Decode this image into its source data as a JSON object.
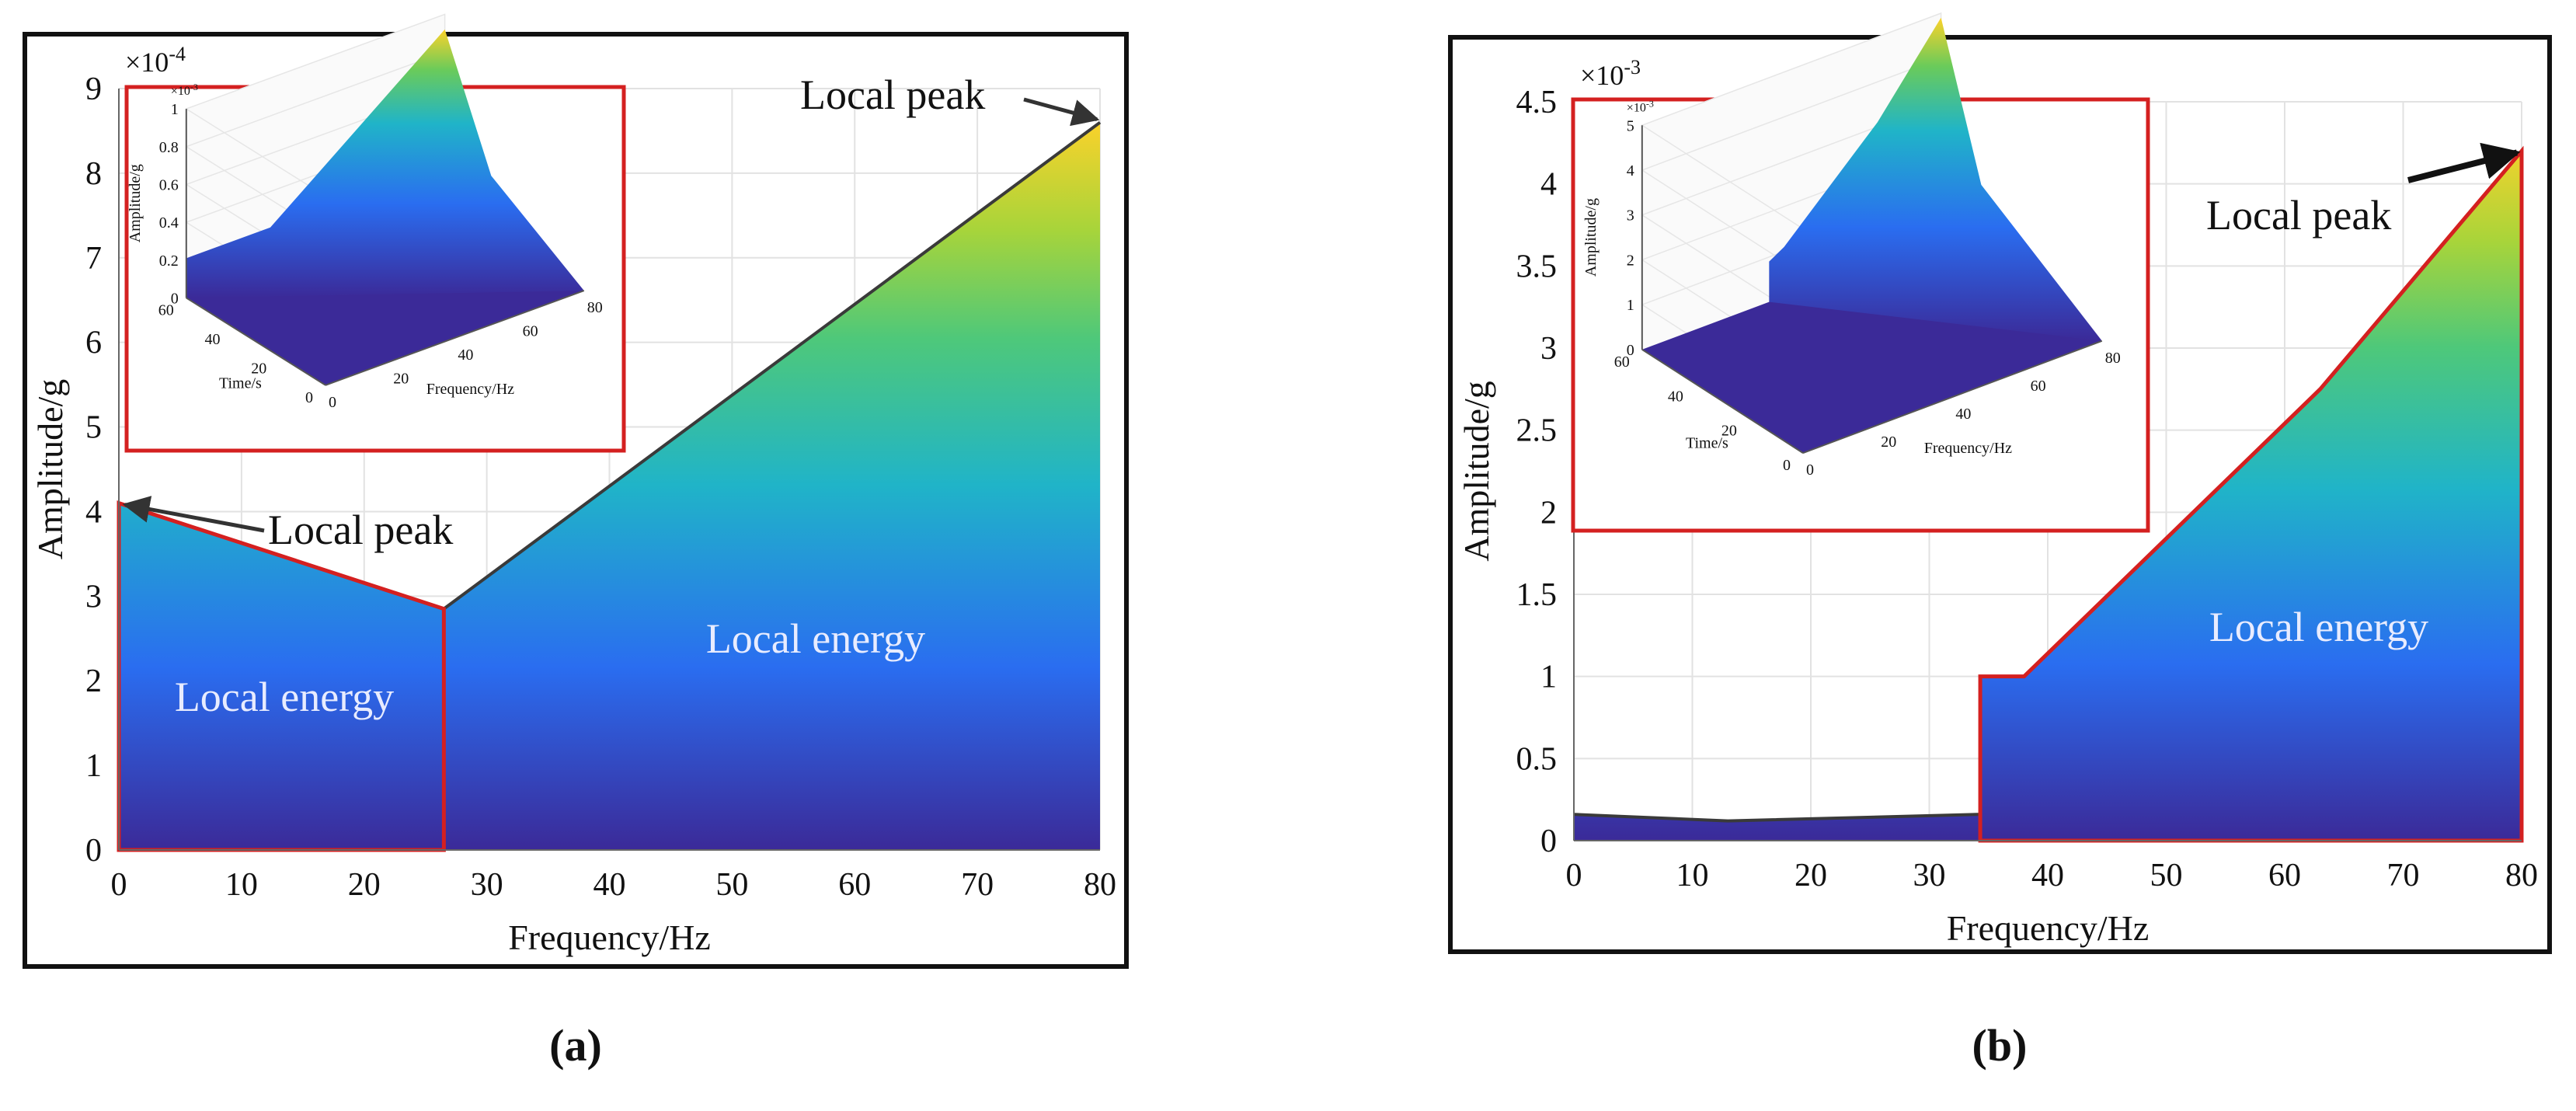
{
  "figure": {
    "panels": [
      {
        "id": "a",
        "label": "(a)"
      },
      {
        "id": "b",
        "label": "(b)"
      }
    ]
  },
  "colors": {
    "gradient_low": "#3b2a98",
    "gradient_mid1": "#2a6df0",
    "gradient_mid2": "#20b4c8",
    "gradient_mid3": "#4ec87a",
    "gradient_high": "#a8d43a",
    "gradient_top": "#fcd22a",
    "highlight": "#d42020",
    "annotation_arrow": "#333333",
    "grid": "#e2e2e2",
    "label_text_light": "#e8ecff"
  },
  "chart_data": [
    {
      "type": "area",
      "panel": "a",
      "title": "",
      "xlabel": "Frequency/Hz",
      "ylabel": "Amplitude/g",
      "y_exponent": "×10",
      "y_exponent_power": "-4",
      "xlim": [
        0,
        80
      ],
      "ylim": [
        0,
        9
      ],
      "xticks": [
        "0",
        "10",
        "20",
        "30",
        "40",
        "50",
        "60",
        "70",
        "80"
      ],
      "yticks": [
        "0",
        "1",
        "2",
        "3",
        "4",
        "5",
        "6",
        "7",
        "8",
        "9"
      ],
      "x": [
        0,
        26.5,
        80
      ],
      "y": [
        4.1,
        2.85,
        8.6
      ],
      "highlight_region": {
        "x": [
          0,
          26.5
        ],
        "y_top": [
          4.1,
          2.85
        ]
      },
      "annotations": [
        {
          "text": "Local peak",
          "x": 0,
          "y": 4.1
        },
        {
          "text": "Local peak",
          "x": 80,
          "y": 8.6
        },
        {
          "text": "Local energy",
          "x": 13,
          "y": 1.3
        },
        {
          "text": "Local energy",
          "x": 57,
          "y": 1.8
        }
      ],
      "inset": {
        "type": "3d-surface",
        "zlabel": "Amplitude/g",
        "zexponent": "×10",
        "zexponent_power": "-3",
        "zticks": [
          "0",
          "0.2",
          "0.4",
          "0.6",
          "0.8",
          "1"
        ],
        "time_label": "Time/s",
        "time_ticks": [
          "0",
          "20",
          "40",
          "60"
        ],
        "freq_label": "Frequency/Hz",
        "freq_ticks": [
          "0",
          "20",
          "40",
          "60",
          "80"
        ]
      }
    },
    {
      "type": "area",
      "panel": "b",
      "title": "",
      "xlabel": "Frequency/Hz",
      "ylabel": "Amplitude/g",
      "y_exponent": "×10",
      "y_exponent_power": "-3",
      "xlim": [
        0,
        80
      ],
      "ylim": [
        0,
        4.5
      ],
      "xticks": [
        "0",
        "10",
        "20",
        "30",
        "40",
        "50",
        "60",
        "70",
        "80"
      ],
      "yticks": [
        "0",
        "0.5",
        "1",
        "1.5",
        "2",
        "2.5",
        "3",
        "3.5",
        "4",
        "4.5"
      ],
      "x": [
        0,
        13,
        34.3,
        34.3,
        38,
        63,
        80
      ],
      "y": [
        0.16,
        0.12,
        0.16,
        1.0,
        1.0,
        2.75,
        4.2
      ],
      "highlight_region": {
        "x": [
          34.3,
          80
        ],
        "y_top": [
          1.0,
          4.2
        ]
      },
      "annotations": [
        {
          "text": "Local peak",
          "x": 80,
          "y": 4.2
        },
        {
          "text": "Local energy",
          "x": 62,
          "y": 1.2
        }
      ],
      "inset": {
        "type": "3d-surface",
        "zlabel": "Amplitude/g",
        "zexponent": "×10",
        "zexponent_power": "-3",
        "zticks": [
          "0",
          "1",
          "2",
          "3",
          "4",
          "5"
        ],
        "time_label": "Time/s",
        "time_ticks": [
          "0",
          "20",
          "40",
          "60"
        ],
        "freq_label": "Frequency/Hz",
        "freq_ticks": [
          "0",
          "20",
          "40",
          "60",
          "80"
        ]
      }
    }
  ]
}
